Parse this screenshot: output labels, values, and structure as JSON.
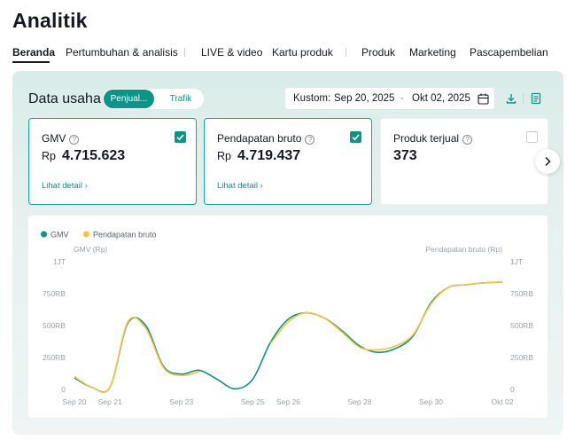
{
  "page": {
    "title": "Analitik"
  },
  "tabs": [
    {
      "label": "Beranda"
    },
    {
      "label": "Pertumbuhan & analisis"
    },
    {
      "label": "LIVE & video"
    },
    {
      "label": "Kartu produk"
    },
    {
      "label": "Produk"
    },
    {
      "label": "Marketing"
    },
    {
      "label": "Pascapembelian"
    }
  ],
  "section": {
    "title": "Data usaha",
    "toggle": {
      "selected": "Penjual...",
      "other": "Trafik"
    }
  },
  "date_range": {
    "label": "Kustom:",
    "start": "Sep 20, 2025",
    "separator": "-",
    "end": "Okt 02, 2025"
  },
  "metric_cards": [
    {
      "title": "GMV",
      "currency": "Rp",
      "value": "4.715.623",
      "link": "Lihat detail ›",
      "checked": true
    },
    {
      "title": "Pendapatan bruto",
      "currency": "Rp",
      "value": "4.719.437",
      "link": "Lihat detail ›",
      "checked": true
    },
    {
      "title": "Produk terjual",
      "currency": "",
      "value": "373",
      "link": "",
      "checked": false
    }
  ],
  "icons": {
    "download": "download-icon",
    "report": "report-icon",
    "calendar": "calendar-icon",
    "help": "help-icon",
    "next": "chevron-right-icon"
  },
  "colors": {
    "accent": "#0d9488",
    "gmv": "#0d9488",
    "revenue": "#f5c343"
  },
  "chart_data": {
    "type": "line",
    "title": "",
    "ylabel_left": "GMV (Rp)",
    "ylabel_right": "Pendapatan bruto (Rp)",
    "ylim": [
      0,
      1000000
    ],
    "y_ticks": [
      "0",
      "250RB",
      "500RB",
      "750RB",
      "1JT"
    ],
    "x_labels": [
      "Sep 20",
      "Sep 21",
      "Sep 23",
      "Sep 25",
      "Sep 26",
      "Sep 28",
      "Sep 30",
      "Okt 02"
    ],
    "legend": [
      "GMV",
      "Pendapatan bruto"
    ],
    "legend_position": "top-left",
    "grid": false,
    "series": [
      {
        "name": "GMV",
        "x": [
          "Sep 20",
          "Sep 20.5",
          "Sep 21",
          "Sep 21.5",
          "Sep 22",
          "Sep 22.5",
          "Sep 23",
          "Sep 23.5",
          "Sep 24",
          "Sep 24.5",
          "Sep 25",
          "Sep 25.5",
          "Sep 26",
          "Sep 26.5",
          "Sep 27",
          "Sep 27.5",
          "Sep 28",
          "Sep 28.5",
          "Sep 29",
          "Sep 29.5",
          "Sep 30",
          "Sep 30.5",
          "Okt 01",
          "Okt 01.5",
          "Okt 02"
        ],
        "values": [
          90000,
          15000,
          20000,
          520000,
          500000,
          180000,
          120000,
          150000,
          80000,
          5000,
          80000,
          370000,
          550000,
          600000,
          560000,
          460000,
          340000,
          290000,
          320000,
          420000,
          680000,
          800000,
          820000,
          835000,
          840000
        ]
      },
      {
        "name": "Pendapatan bruto",
        "x": [
          "Sep 20",
          "Sep 20.5",
          "Sep 21",
          "Sep 21.5",
          "Sep 22",
          "Sep 22.5",
          "Sep 23",
          "Sep 23.5",
          "Sep 24",
          "Sep 24.5",
          "Sep 25",
          "Sep 25.5",
          "Sep 26",
          "Sep 26.5",
          "Sep 27",
          "Sep 27.5",
          "Sep 28",
          "Sep 28.5",
          "Sep 29",
          "Sep 29.5",
          "Sep 30",
          "Sep 30.5",
          "Okt 01",
          "Okt 01.5",
          "Okt 02"
        ],
        "values": [
          100000,
          15000,
          20000,
          530000,
          480000,
          170000,
          110000,
          140000,
          null,
          null,
          null,
          360000,
          530000,
          600000,
          560000,
          450000,
          330000,
          310000,
          340000,
          430000,
          670000,
          800000,
          820000,
          835000,
          840000
        ]
      }
    ]
  }
}
